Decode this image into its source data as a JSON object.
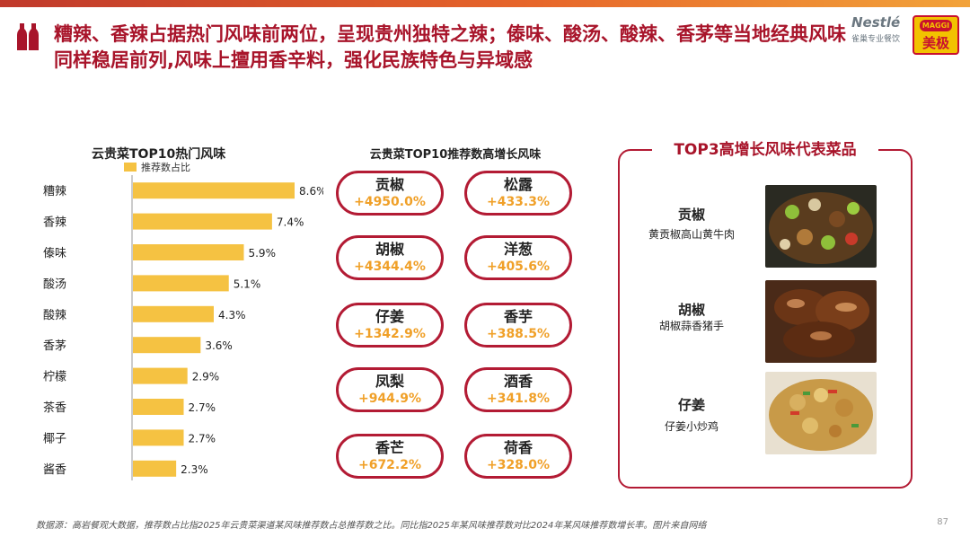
{
  "headline": "糟辣、香辣占据热门风味前两位，呈现贵州独特之辣；傣味、酸汤、酸辣、香茅等当地经典风味同样稳居前列,风味上擅用香辛料，强化民族特色与异域感",
  "brand": {
    "nestle_word": "Nestlé",
    "nestle_sub": "雀巢专业餐饮",
    "maggi_word": "MAGGI",
    "maggi_cn": "美极"
  },
  "colors": {
    "accent": "#a8142a",
    "bar": "#f5c242",
    "pill_border": "#b31b34",
    "growth": "#f0a028"
  },
  "left_chart": {
    "title": "云贵菜TOP10热门风味",
    "legend": "推荐数占比"
  },
  "chart_data": {
    "type": "bar",
    "orientation": "horizontal",
    "title": "云贵菜TOP10热门风味",
    "categories": [
      "糟辣",
      "香辣",
      "傣味",
      "酸汤",
      "酸辣",
      "香茅",
      "柠檬",
      "茶香",
      "椰子",
      "酱香"
    ],
    "series": [
      {
        "name": "推荐数占比",
        "values": [
          8.6,
          7.4,
          5.9,
          5.1,
          4.3,
          3.6,
          2.9,
          2.7,
          2.7,
          2.3
        ]
      }
    ],
    "value_labels": [
      "8.6%",
      "7.4%",
      "5.9%",
      "5.1%",
      "4.3%",
      "3.6%",
      "2.9%",
      "2.7%",
      "2.7%",
      "2.3%"
    ],
    "unit": "%",
    "xlim": [
      0,
      9
    ],
    "grid": false,
    "legend_position": "top"
  },
  "middle": {
    "title": "云贵菜TOP10推荐数高增长风味",
    "items": [
      {
        "name": "贡椒",
        "growth": "+4950.0%"
      },
      {
        "name": "松露",
        "growth": "+433.3%"
      },
      {
        "name": "胡椒",
        "growth": "+4344.4%"
      },
      {
        "name": "洋葱",
        "growth": "+405.6%"
      },
      {
        "name": "仔姜",
        "growth": "+1342.9%"
      },
      {
        "name": "香芋",
        "growth": "+388.5%"
      },
      {
        "name": "凤梨",
        "growth": "+944.9%"
      },
      {
        "name": "酒香",
        "growth": "+341.8%"
      },
      {
        "name": "香芒",
        "growth": "+672.2%"
      },
      {
        "name": "荷香",
        "growth": "+328.0%"
      }
    ]
  },
  "right_panel": {
    "title": "TOP3高增长风味代表菜品",
    "dishes": [
      {
        "flavor": "贡椒",
        "dish": "黄贡椒高山黄牛肉"
      },
      {
        "flavor": "胡椒",
        "dish": "胡椒蒜香猪手"
      },
      {
        "flavor": "仔姜",
        "dish": "仔姜小炒鸡"
      }
    ]
  },
  "footer": {
    "source": "数据源：高岩餐观大数据，推荐数占比指2025年云贵菜渠道某风味推荐数占总推荐数之比。同比指2025年某风味推荐数对比2024年某风味推荐数增长率。图片来自网络",
    "page": "87"
  }
}
